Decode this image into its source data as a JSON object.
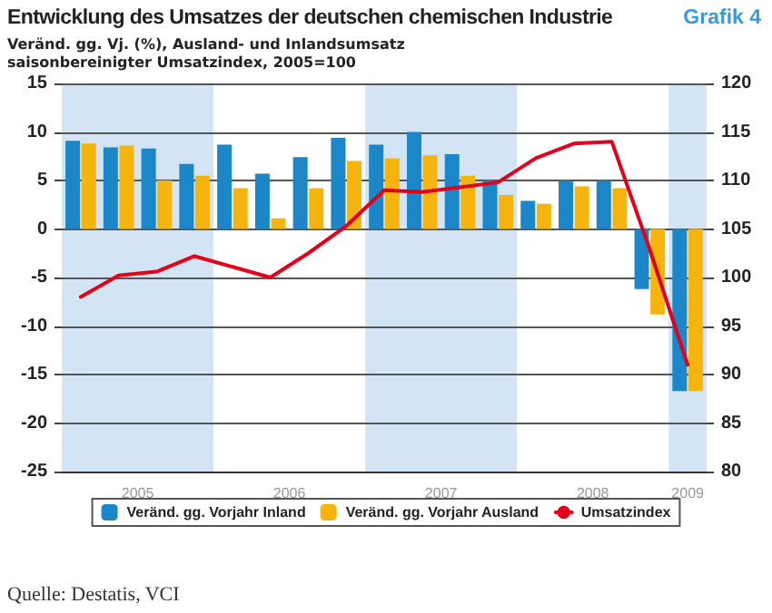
{
  "chart_data": {
    "type": "bar",
    "title": "Entwicklung des Umsatzes der deutschen chemischen Industrie",
    "subtitle": "Veränd. gg. Vj. (%), Ausland- und Inlandsumsatz\nsaisonbereinigter Umsatzindex, 2005=100",
    "annotations": [
      "Grafik 4",
      "Quelle: Destatis, VCI"
    ],
    "x": [
      2005.125,
      2005.375,
      2005.625,
      2005.875,
      2006.125,
      2006.375,
      2006.625,
      2006.875,
      2007.125,
      2007.375,
      2007.625,
      2007.875,
      2008.125,
      2008.375,
      2008.625,
      2008.875,
      2009.125
    ],
    "series": [
      {
        "name": "Veränd. gg. Vorjahr Inland",
        "color": "#1b86c8",
        "values": [
          9.1,
          8.4,
          8.3,
          6.7,
          8.7,
          5.7,
          7.4,
          9.4,
          8.7,
          10.0,
          7.7,
          5.0,
          2.9,
          5.0,
          5.0,
          -6.2,
          -16.7
        ]
      },
      {
        "name": "Veränd. gg. Vorjahr Ausland",
        "color": "#f6b40e",
        "values": [
          8.8,
          8.6,
          5.0,
          5.5,
          4.2,
          1.1,
          4.2,
          7.0,
          7.3,
          7.6,
          5.5,
          3.5,
          2.6,
          4.4,
          4.2,
          -8.8,
          -16.7
        ]
      },
      {
        "name": "Umsatzindex",
        "type": "line",
        "axis": "y2",
        "color": "#e2001a",
        "values": [
          98,
          100.2,
          100.6,
          102.2,
          101.1,
          100,
          102.5,
          105.3,
          109,
          108.8,
          109.3,
          109.8,
          112.3,
          113.8,
          114,
          102.9,
          91
        ]
      }
    ],
    "xlim": [
      2005,
      2009.25
    ],
    "xticks": [
      {
        "value": 2005.5,
        "label": "2005"
      },
      {
        "value": 2006.5,
        "label": "2006"
      },
      {
        "value": 2007.5,
        "label": "2007"
      },
      {
        "value": 2008.5,
        "label": "2008"
      },
      {
        "value": 2009.125,
        "label": "2009"
      }
    ],
    "ylim": [
      -25,
      15
    ],
    "yticks": [
      -25,
      -20,
      -15,
      -10,
      -5,
      0,
      5,
      10,
      15
    ],
    "y2lim": [
      80,
      120
    ],
    "y2ticks": [
      80,
      85,
      90,
      95,
      100,
      105,
      110,
      115,
      120
    ],
    "bands": [
      {
        "axis": "x",
        "from": 2005,
        "to": 2006,
        "color": "#d3e4f4"
      },
      {
        "axis": "x",
        "from": 2007,
        "to": 2008,
        "color": "#d3e4f4"
      },
      {
        "axis": "x",
        "from": 2009,
        "to": 2009.25,
        "color": "#d3e4f4"
      }
    ],
    "grid": "y",
    "legend": "bottom",
    "marker": "none",
    "line_style": "solid"
  }
}
